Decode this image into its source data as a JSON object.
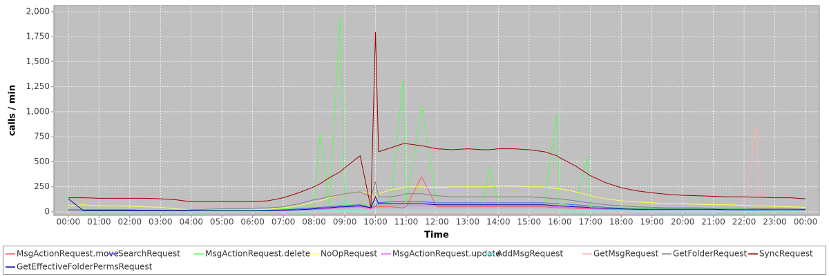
{
  "chart_data": {
    "type": "line",
    "y_label": "calls / min",
    "x_label": "Time",
    "x": [
      0,
      0.5,
      1,
      1.5,
      2,
      2.5,
      3,
      3.5,
      4,
      4.5,
      5,
      5.5,
      6,
      6.5,
      7,
      7.5,
      8,
      8.2,
      8.5,
      8.85,
      9,
      9.5,
      9.85,
      10,
      10.1,
      10.5,
      10.9,
      11,
      11.5,
      12,
      12.5,
      13,
      13.5,
      13.7,
      14,
      14.5,
      15,
      15.5,
      15.9,
      16,
      16.5,
      16.9,
      17,
      17.5,
      18,
      18.5,
      19,
      19.5,
      20,
      20.5,
      21,
      21.5,
      22,
      22.4,
      22.5,
      23,
      23.5,
      24
    ],
    "xlim": [
      -0.47,
      24.45
    ],
    "xticks": [
      {
        "value": 0,
        "label": "00:00"
      },
      {
        "value": 1,
        "label": "01:00"
      },
      {
        "value": 2,
        "label": "02:00"
      },
      {
        "value": 3,
        "label": "03:00"
      },
      {
        "value": 4,
        "label": "04:00"
      },
      {
        "value": 5,
        "label": "05:00"
      },
      {
        "value": 6,
        "label": "06:00"
      },
      {
        "value": 7,
        "label": "07:00"
      },
      {
        "value": 8,
        "label": "08:00"
      },
      {
        "value": 9,
        "label": "09:00"
      },
      {
        "value": 10,
        "label": "10:00"
      },
      {
        "value": 11,
        "label": "11:00"
      },
      {
        "value": 12,
        "label": "12:00"
      },
      {
        "value": 13,
        "label": "13:00"
      },
      {
        "value": 14,
        "label": "14:00"
      },
      {
        "value": 15,
        "label": "15:00"
      },
      {
        "value": 16,
        "label": "16:00"
      },
      {
        "value": 17,
        "label": "17:00"
      },
      {
        "value": 18,
        "label": "18:00"
      },
      {
        "value": 19,
        "label": "19:00"
      },
      {
        "value": 20,
        "label": "20:00"
      },
      {
        "value": 21,
        "label": "21:00"
      },
      {
        "value": 22,
        "label": "22:00"
      },
      {
        "value": 23,
        "label": "23:00"
      },
      {
        "value": 24,
        "label": "00:00"
      }
    ],
    "ylim": [
      -35,
      2062
    ],
    "yticks": [
      0,
      250,
      500,
      750,
      {
        "value": 1000,
        "label": "1,000"
      },
      {
        "value": 1250,
        "label": "1,250"
      },
      {
        "value": 1500,
        "label": "1,500"
      },
      {
        "value": 1750,
        "label": "1,750"
      },
      {
        "value": 2000,
        "label": "2,000"
      }
    ],
    "grid": true,
    "legend": "bottom",
    "series": [
      {
        "name": "MsgActionRequest.move",
        "color": "#ff5555",
        "values": [
          5,
          5,
          5,
          5,
          5,
          5,
          5,
          5,
          5,
          5,
          5,
          5,
          5,
          5,
          10,
          15,
          20,
          25,
          30,
          40,
          40,
          50,
          30,
          50,
          50,
          50,
          40,
          50,
          350,
          50,
          50,
          50,
          50,
          50,
          50,
          50,
          50,
          50,
          40,
          40,
          35,
          30,
          30,
          25,
          20,
          20,
          15,
          15,
          15,
          15,
          15,
          15,
          15,
          15,
          15,
          10,
          10,
          10
        ]
      },
      {
        "name": "SearchRequest",
        "color": "#5555ff",
        "values": [
          20,
          20,
          20,
          20,
          20,
          15,
          15,
          10,
          10,
          10,
          10,
          10,
          10,
          15,
          20,
          30,
          40,
          45,
          50,
          60,
          60,
          70,
          40,
          60,
          90,
          100,
          100,
          100,
          100,
          90,
          90,
          90,
          90,
          90,
          90,
          90,
          90,
          90,
          80,
          80,
          70,
          60,
          55,
          45,
          40,
          35,
          30,
          30,
          30,
          30,
          30,
          30,
          30,
          30,
          30,
          25,
          25,
          25
        ]
      },
      {
        "name": "MsgActionRequest.delete",
        "color": "#55ff55",
        "values": [
          10,
          10,
          10,
          10,
          10,
          10,
          10,
          10,
          15,
          15,
          15,
          15,
          15,
          20,
          30,
          40,
          60,
          800,
          60,
          1950,
          70,
          80,
          60,
          80,
          80,
          90,
          1320,
          90,
          1060,
          80,
          80,
          80,
          80,
          450,
          80,
          80,
          80,
          80,
          980,
          80,
          60,
          540,
          50,
          40,
          40,
          35,
          30,
          30,
          30,
          30,
          30,
          30,
          30,
          30,
          30,
          25,
          25,
          25
        ]
      },
      {
        "name": "NoOpRequest",
        "color": "#ffff55",
        "values": [
          60,
          70,
          60,
          60,
          55,
          50,
          45,
          30,
          20,
          20,
          20,
          20,
          20,
          25,
          40,
          60,
          100,
          110,
          140,
          170,
          180,
          200,
          180,
          120,
          180,
          220,
          240,
          250,
          250,
          240,
          250,
          250,
          250,
          250,
          260,
          260,
          250,
          250,
          230,
          230,
          200,
          170,
          160,
          130,
          110,
          100,
          90,
          80,
          80,
          75,
          70,
          70,
          65,
          60,
          60,
          55,
          50,
          45
        ]
      },
      {
        "name": "MsgActionRequest.update",
        "color": "#ff55ff",
        "values": [
          5,
          5,
          5,
          5,
          5,
          5,
          5,
          5,
          5,
          5,
          5,
          5,
          5,
          5,
          10,
          15,
          20,
          25,
          30,
          40,
          40,
          50,
          30,
          60,
          60,
          60,
          60,
          60,
          60,
          60,
          60,
          60,
          60,
          60,
          60,
          60,
          60,
          60,
          50,
          50,
          40,
          35,
          30,
          25,
          20,
          20,
          15,
          15,
          15,
          15,
          15,
          15,
          15,
          15,
          15,
          10,
          10,
          10
        ]
      },
      {
        "name": "AddMsgRequest",
        "color": "#55ffff",
        "values": [
          5,
          5,
          5,
          5,
          5,
          5,
          5,
          5,
          5,
          5,
          5,
          5,
          5,
          5,
          5,
          10,
          10,
          10,
          15,
          15,
          15,
          20,
          15,
          20,
          20,
          20,
          20,
          20,
          20,
          20,
          20,
          20,
          20,
          20,
          20,
          20,
          20,
          20,
          20,
          20,
          15,
          15,
          15,
          10,
          10,
          10,
          10,
          10,
          10,
          10,
          10,
          10,
          10,
          10,
          10,
          10,
          10,
          10
        ]
      },
      {
        "name": "GetMsgRequest",
        "color": "#ffafaf",
        "values": [
          5,
          5,
          5,
          5,
          5,
          5,
          5,
          5,
          5,
          5,
          5,
          5,
          5,
          5,
          5,
          5,
          5,
          5,
          5,
          5,
          5,
          5,
          5,
          5,
          5,
          5,
          5,
          5,
          5,
          5,
          5,
          5,
          5,
          5,
          5,
          5,
          5,
          5,
          5,
          5,
          5,
          5,
          5,
          5,
          5,
          5,
          5,
          5,
          5,
          5,
          5,
          5,
          5,
          870,
          5,
          5,
          5,
          5
        ]
      },
      {
        "name": "GetFolderRequest",
        "color": "#808080",
        "values": [
          15,
          15,
          15,
          15,
          15,
          15,
          15,
          15,
          20,
          25,
          30,
          30,
          35,
          40,
          50,
          80,
          120,
          130,
          150,
          170,
          180,
          200,
          150,
          300,
          150,
          150,
          170,
          180,
          180,
          160,
          150,
          150,
          150,
          150,
          150,
          150,
          150,
          140,
          130,
          130,
          110,
          90,
          90,
          70,
          60,
          50,
          45,
          40,
          40,
          40,
          35,
          35,
          35,
          30,
          30,
          30,
          30,
          25
        ]
      },
      {
        "name": "SyncRequest",
        "color": "#a00000",
        "values": [
          140,
          140,
          135,
          135,
          135,
          135,
          130,
          120,
          100,
          100,
          100,
          100,
          100,
          110,
          140,
          190,
          250,
          280,
          340,
          400,
          440,
          560,
          40,
          1800,
          600,
          640,
          680,
          680,
          660,
          630,
          620,
          630,
          620,
          620,
          630,
          630,
          620,
          600,
          560,
          540,
          460,
          380,
          360,
          290,
          240,
          210,
          190,
          175,
          165,
          160,
          155,
          150,
          150,
          145,
          145,
          140,
          140,
          130
        ]
      },
      {
        "name": "GetEffectiveFolderPermsRequest",
        "color": "#0000a0",
        "values": [
          130,
          10,
          10,
          10,
          10,
          10,
          10,
          10,
          10,
          10,
          10,
          10,
          10,
          10,
          15,
          20,
          30,
          35,
          40,
          50,
          50,
          60,
          40,
          150,
          80,
          80,
          80,
          80,
          80,
          70,
          70,
          70,
          70,
          70,
          70,
          70,
          70,
          70,
          60,
          60,
          50,
          45,
          40,
          35,
          30,
          25,
          25,
          25,
          25,
          25,
          25,
          20,
          20,
          20,
          20,
          20,
          20,
          20
        ]
      }
    ]
  }
}
